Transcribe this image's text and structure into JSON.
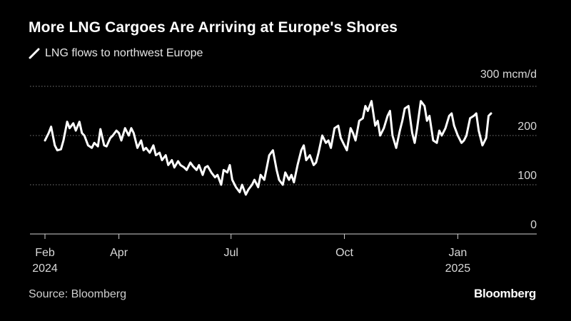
{
  "chart_data": {
    "type": "line",
    "title": "More LNG Cargoes Are Arriving at Europe's Shores",
    "legend": "LNG flows to northwest Europe",
    "y_unit_label": "300 mcm/d",
    "y_ticks": [
      {
        "value": 0,
        "label": "0"
      },
      {
        "value": 100,
        "label": "100"
      },
      {
        "value": 200,
        "label": "200"
      },
      {
        "value": 300,
        "label": "300 mcm/d"
      }
    ],
    "ylim": [
      0,
      300
    ],
    "x_ticks": [
      {
        "month": "Feb",
        "year": "2024",
        "index": 0
      },
      {
        "month": "Apr",
        "year": "",
        "index": 60
      },
      {
        "month": "Jul",
        "year": "",
        "index": 151
      },
      {
        "month": "Oct",
        "year": "",
        "index": 243
      },
      {
        "month": "Jan",
        "year": "2025",
        "index": 335
      }
    ],
    "series": [
      {
        "name": "LNG flows to northwest Europe",
        "color": "#ffffff",
        "x": [
          0,
          3,
          5,
          8,
          10,
          13,
          15,
          18,
          20,
          23,
          25,
          28,
          30,
          32,
          35,
          38,
          40,
          43,
          45,
          48,
          50,
          53,
          55,
          58,
          60,
          62,
          65,
          68,
          70,
          72,
          75,
          78,
          80,
          82,
          85,
          88,
          90,
          93,
          95,
          98,
          100,
          103,
          105,
          108,
          110,
          113,
          115,
          118,
          120,
          123,
          125,
          128,
          130,
          132,
          135,
          138,
          140,
          143,
          145,
          148,
          150,
          152,
          155,
          158,
          160,
          163,
          165,
          168,
          170,
          173,
          175,
          178,
          180,
          182,
          185,
          188,
          190,
          193,
          195,
          198,
          200,
          202,
          205,
          208,
          210,
          212,
          215,
          218,
          220,
          222,
          225,
          228,
          230,
          232,
          235,
          238,
          240,
          243,
          245,
          248,
          250,
          252,
          255,
          258,
          260,
          262,
          265,
          268,
          270,
          272,
          275,
          278,
          280,
          282,
          285,
          288,
          290,
          292,
          295,
          298,
          300,
          302,
          305,
          308,
          310,
          312,
          315,
          318,
          320,
          322,
          325,
          328,
          330,
          332,
          335,
          338,
          340,
          342,
          345,
          348,
          350,
          352,
          355,
          358,
          360,
          362
        ],
        "values": [
          190,
          205,
          218,
          180,
          170,
          172,
          190,
          228,
          215,
          225,
          210,
          228,
          205,
          200,
          180,
          175,
          185,
          178,
          213,
          180,
          178,
          195,
          200,
          210,
          205,
          190,
          215,
          200,
          215,
          205,
          175,
          190,
          170,
          175,
          165,
          180,
          160,
          165,
          150,
          160,
          140,
          150,
          135,
          148,
          140,
          135,
          130,
          145,
          138,
          130,
          140,
          120,
          135,
          138,
          125,
          115,
          120,
          100,
          130,
          125,
          140,
          110,
          95,
          85,
          100,
          80,
          90,
          100,
          110,
          95,
          120,
          110,
          135,
          160,
          170,
          130,
          110,
          100,
          125,
          110,
          120,
          105,
          140,
          170,
          180,
          150,
          160,
          140,
          145,
          165,
          200,
          185,
          190,
          175,
          215,
          220,
          195,
          180,
          170,
          215,
          205,
          190,
          230,
          235,
          260,
          250,
          270,
          220,
          230,
          200,
          215,
          240,
          250,
          200,
          175,
          210,
          230,
          255,
          260,
          205,
          185,
          215,
          270,
          260,
          230,
          240,
          190,
          185,
          210,
          200,
          215,
          240,
          245,
          220,
          200,
          185,
          190,
          200,
          235,
          240,
          245,
          210,
          180,
          195,
          240,
          245
        ]
      }
    ]
  },
  "source": "Source: Bloomberg",
  "brand": "Bloomberg",
  "colors": {
    "background": "#000000",
    "line": "#ffffff",
    "grid": "#777777",
    "text": "#d9d9d9"
  }
}
